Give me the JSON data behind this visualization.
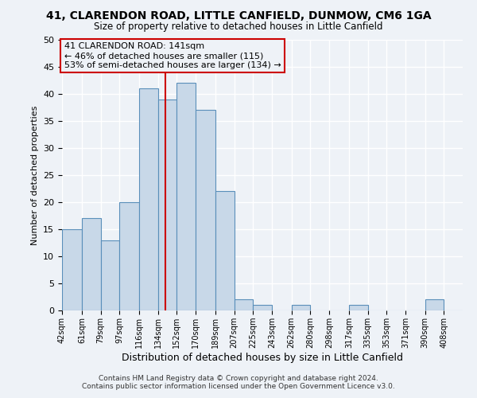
{
  "title1": "41, CLARENDON ROAD, LITTLE CANFIELD, DUNMOW, CM6 1GA",
  "title2": "Size of property relative to detached houses in Little Canfield",
  "xlabel": "Distribution of detached houses by size in Little Canfield",
  "ylabel": "Number of detached properties",
  "bin_labels": [
    "42sqm",
    "61sqm",
    "79sqm",
    "97sqm",
    "116sqm",
    "134sqm",
    "152sqm",
    "170sqm",
    "189sqm",
    "207sqm",
    "225sqm",
    "243sqm",
    "262sqm",
    "280sqm",
    "298sqm",
    "317sqm",
    "335sqm",
    "353sqm",
    "371sqm",
    "390sqm",
    "408sqm"
  ],
  "bin_edges": [
    42,
    61,
    79,
    97,
    116,
    134,
    152,
    170,
    189,
    207,
    225,
    243,
    262,
    280,
    298,
    317,
    335,
    353,
    371,
    390,
    408
  ],
  "bar_heights": [
    15,
    17,
    13,
    20,
    41,
    39,
    42,
    37,
    22,
    2,
    1,
    0,
    1,
    0,
    0,
    1,
    0,
    0,
    0,
    2,
    0
  ],
  "bar_color": "#c8d8e8",
  "bar_edge_color": "#5a8fba",
  "vline_x": 141,
  "vline_color": "#cc0000",
  "annotation_title": "41 CLARENDON ROAD: 141sqm",
  "annotation_line1": "← 46% of detached houses are smaller (115)",
  "annotation_line2": "53% of semi-detached houses are larger (134) →",
  "annotation_box_color": "#cc0000",
  "ylim": [
    0,
    50
  ],
  "yticks": [
    0,
    5,
    10,
    15,
    20,
    25,
    30,
    35,
    40,
    45,
    50
  ],
  "footer1": "Contains HM Land Registry data © Crown copyright and database right 2024.",
  "footer2": "Contains public sector information licensed under the Open Government Licence v3.0.",
  "background_color": "#eef2f7",
  "grid_color": "#ffffff"
}
